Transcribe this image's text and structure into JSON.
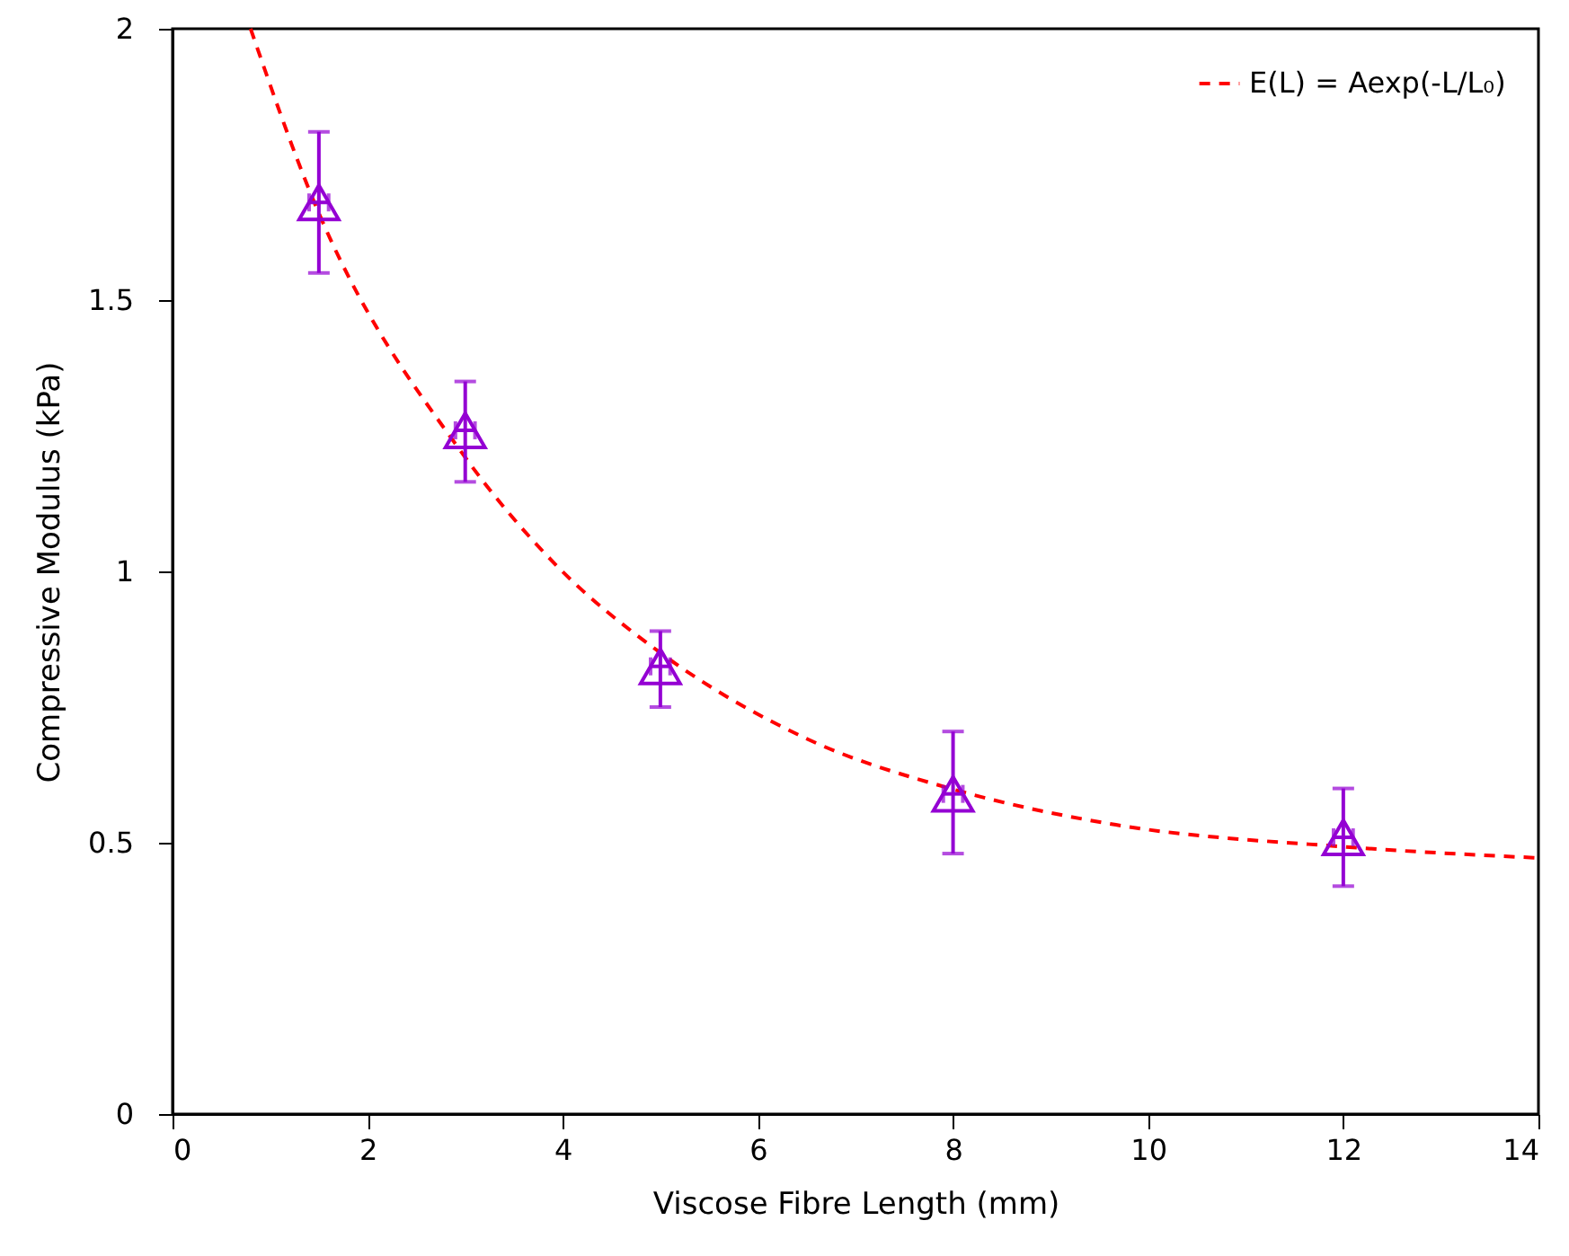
{
  "chart_data": {
    "type": "scatter",
    "xlabel": "Viscose Fibre Length (mm)",
    "ylabel": "Compressive Modulus (kPa)",
    "xlim": [
      0,
      14
    ],
    "xticks": [
      0,
      2,
      4,
      6,
      8,
      10,
      12,
      14
    ],
    "ylim": [
      0,
      2
    ],
    "yticks": [
      0,
      0.5,
      1,
      1.5,
      2
    ],
    "grid": false,
    "legend": "top right",
    "series": [
      {
        "color": "#9400d3",
        "marker": "triangle",
        "x": [
          1.5,
          3,
          5,
          8,
          12
        ],
        "values": [
          1.68,
          1.26,
          0.825,
          0.59,
          0.51
        ],
        "errors": [
          [
            1.55,
            1.81
          ],
          [
            1.165,
            1.35
          ],
          [
            0.75,
            0.89
          ],
          [
            0.48,
            0.705
          ],
          [
            0.42,
            0.6
          ]
        ],
        "xerrors": [
          0.1,
          0.1,
          0.1,
          0.1,
          0.1
        ]
      },
      {
        "type": "line",
        "name": "E(L) = Aexp(-L/L₀)",
        "color": "#ff0000",
        "marker": "none",
        "line_style": "dashed",
        "x": [
          0.8,
          1.43,
          2.96,
          3.94,
          4.97,
          6.52,
          7.97,
          9.67,
          11.97,
          14
        ],
        "values": [
          2.0,
          1.69,
          1.22,
          1.01,
          0.854,
          0.69,
          0.6,
          0.533,
          0.493,
          0.472
        ]
      }
    ]
  }
}
